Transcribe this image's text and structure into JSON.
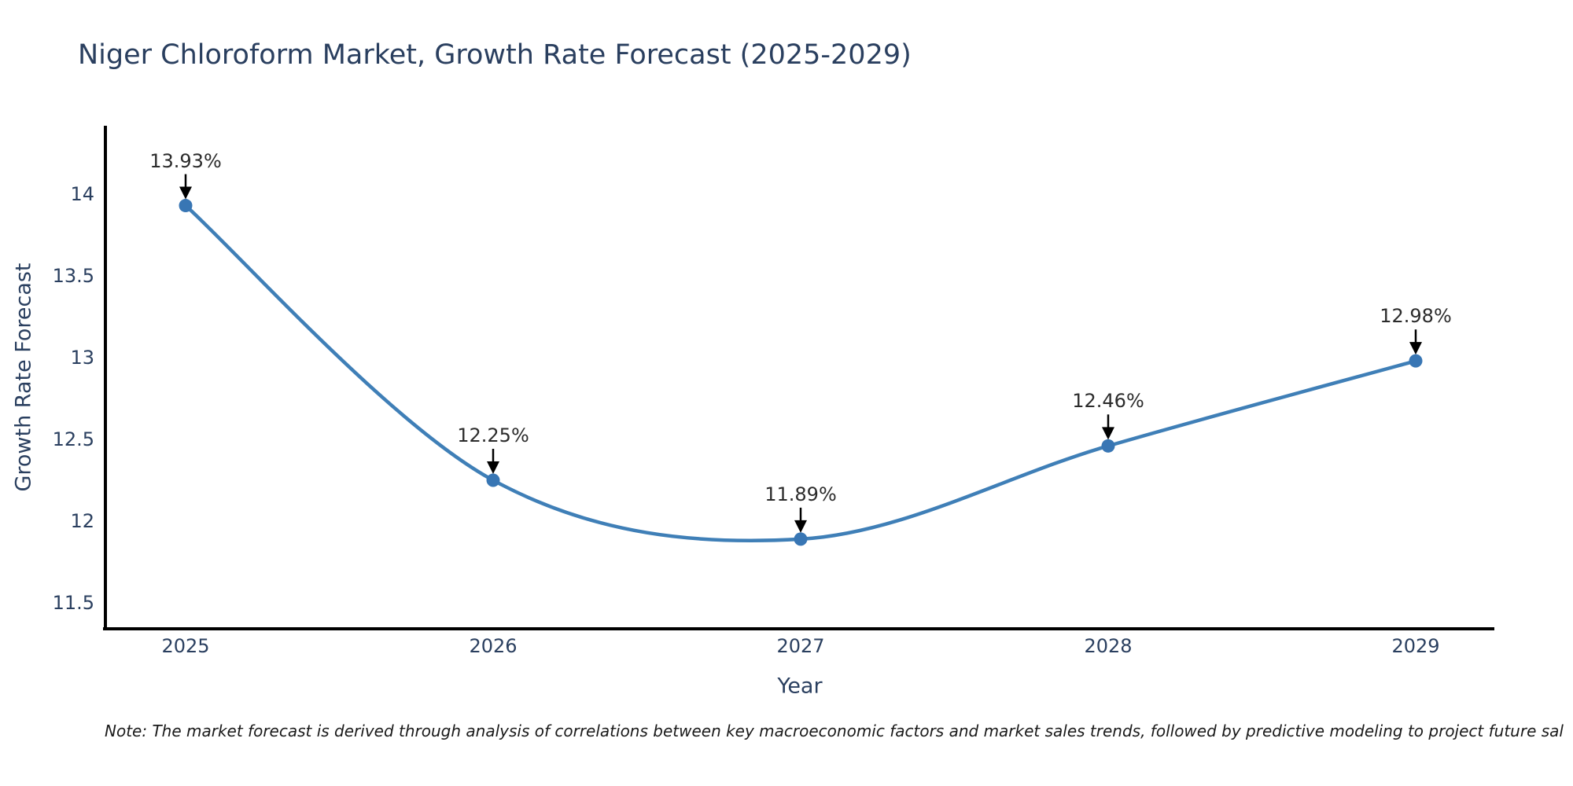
{
  "figure": {
    "background": "#ffffff",
    "note": "Note: The market forecast is derived through analysis of correlations between key macroeconomic factors and market sales trends, followed by predictive modeling to project future sal"
  },
  "chart_data": {
    "type": "line",
    "title": "Niger Chloroform Market, Growth Rate Forecast (2025-2029)",
    "xlabel": "Year",
    "ylabel": "Growth Rate Forecast",
    "x": [
      2025,
      2026,
      2027,
      2028,
      2029
    ],
    "series": [
      {
        "name": "Growth Rate Forecast",
        "values": [
          13.93,
          12.25,
          11.89,
          12.46,
          12.98
        ]
      }
    ],
    "point_labels": [
      "13.93%",
      "12.25%",
      "11.89%",
      "12.46%",
      "12.98%"
    ],
    "xtick_labels": [
      "2025",
      "2026",
      "2027",
      "2028",
      "2029"
    ],
    "yticks": [
      11.5,
      12,
      12.5,
      13,
      13.5,
      14
    ],
    "ytick_labels": [
      "11.5",
      "12",
      "12.5",
      "13",
      "13.5",
      "14"
    ],
    "ylim": [
      11.35,
      14.42
    ],
    "xlim_years": [
      2024.74,
      2029.26
    ],
    "grid": false,
    "legend": false,
    "line_smoothing": "spline",
    "annotation_arrows": true,
    "colors": {
      "line": "#3f7fb7",
      "marker": "#3876b4",
      "axis_line": "#000000",
      "heading_text": "#2a3f5f",
      "annotation_text": "#2b2b2b",
      "arrow": "#000000",
      "note_text": "#1a1a1a"
    }
  }
}
